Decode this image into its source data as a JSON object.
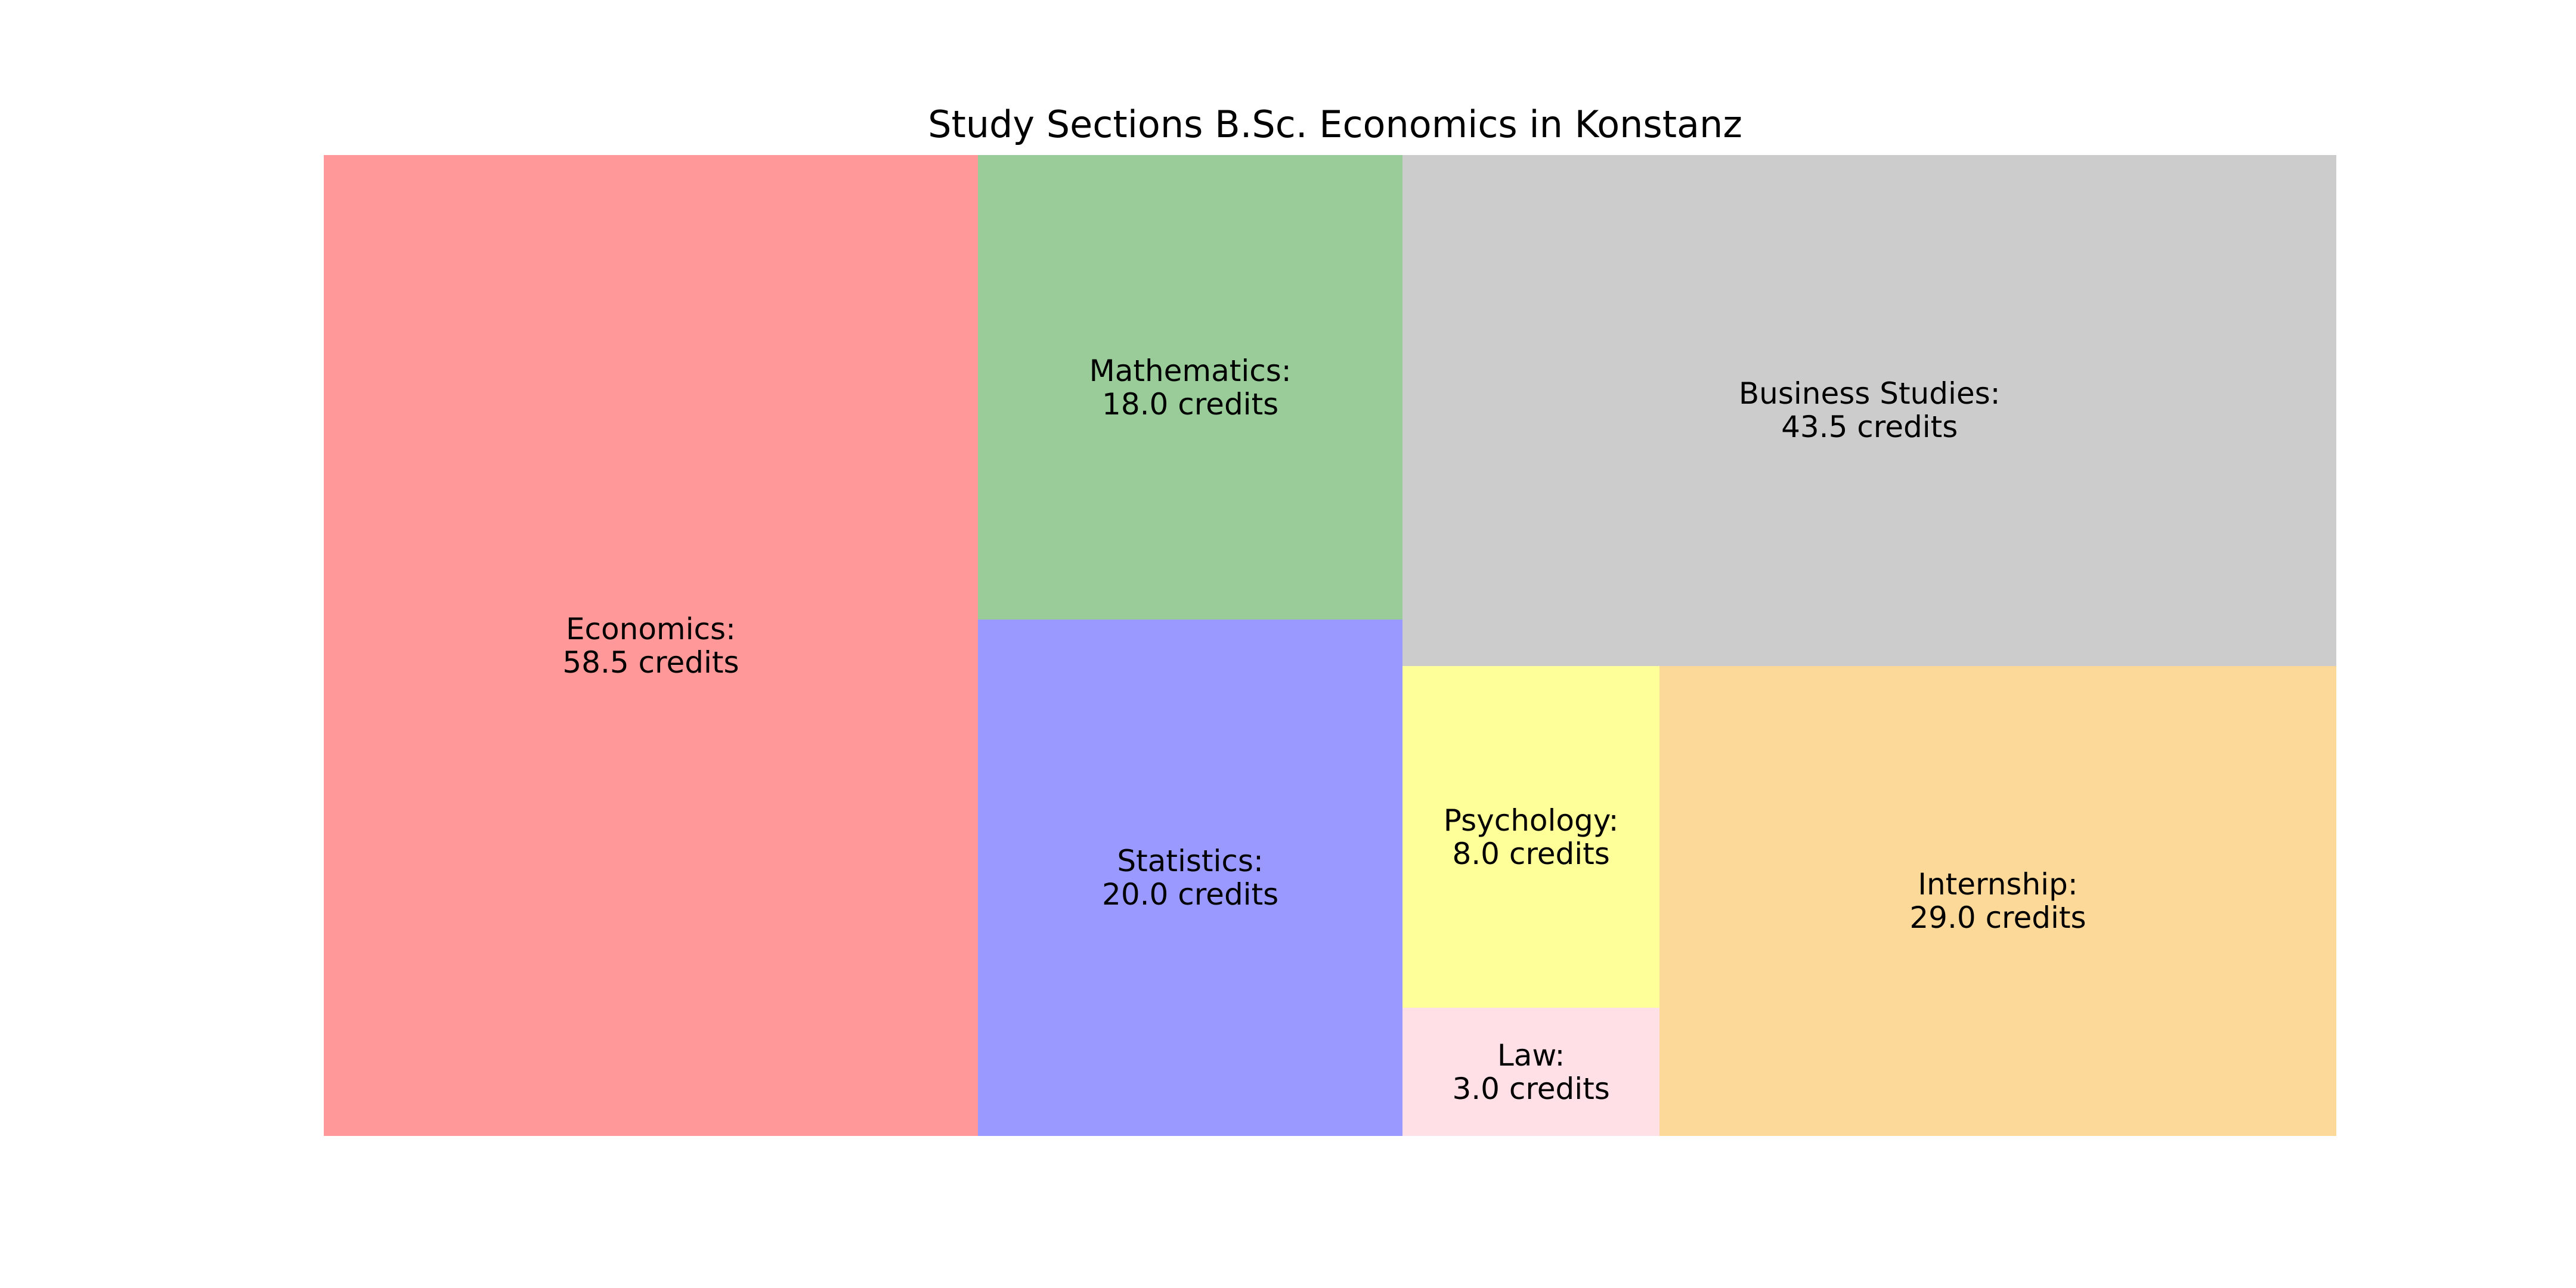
{
  "chart_data": {
    "type": "treemap",
    "title": "Study Sections B.Sc. Economics in Konstanz",
    "unit": "credits",
    "sections": [
      {
        "name": "Economics",
        "credits": 58.5,
        "label": "Economics:\n58.5 credits",
        "color": "#ff9999"
      },
      {
        "name": "Mathematics",
        "credits": 18.0,
        "label": "Mathematics:\n18.0 credits",
        "color": "#99cc99"
      },
      {
        "name": "Statistics",
        "credits": 20.0,
        "label": "Statistics:\n20.0 credits",
        "color": "#9999ff"
      },
      {
        "name": "Business Studies",
        "credits": 43.5,
        "label": "Business Studies:\n43.5 credits",
        "color": "#cccccc"
      },
      {
        "name": "Psychology",
        "credits": 8.0,
        "label": "Psychology:\n8.0 credits",
        "color": "#ffff99"
      },
      {
        "name": "Law",
        "credits": 3.0,
        "label": "Law:\n3.0 credits",
        "color": "#ffe0e6"
      },
      {
        "name": "Internship",
        "credits": 29.0,
        "label": "Internship:\n29.0 credits",
        "color": "#fdd999"
      }
    ]
  }
}
